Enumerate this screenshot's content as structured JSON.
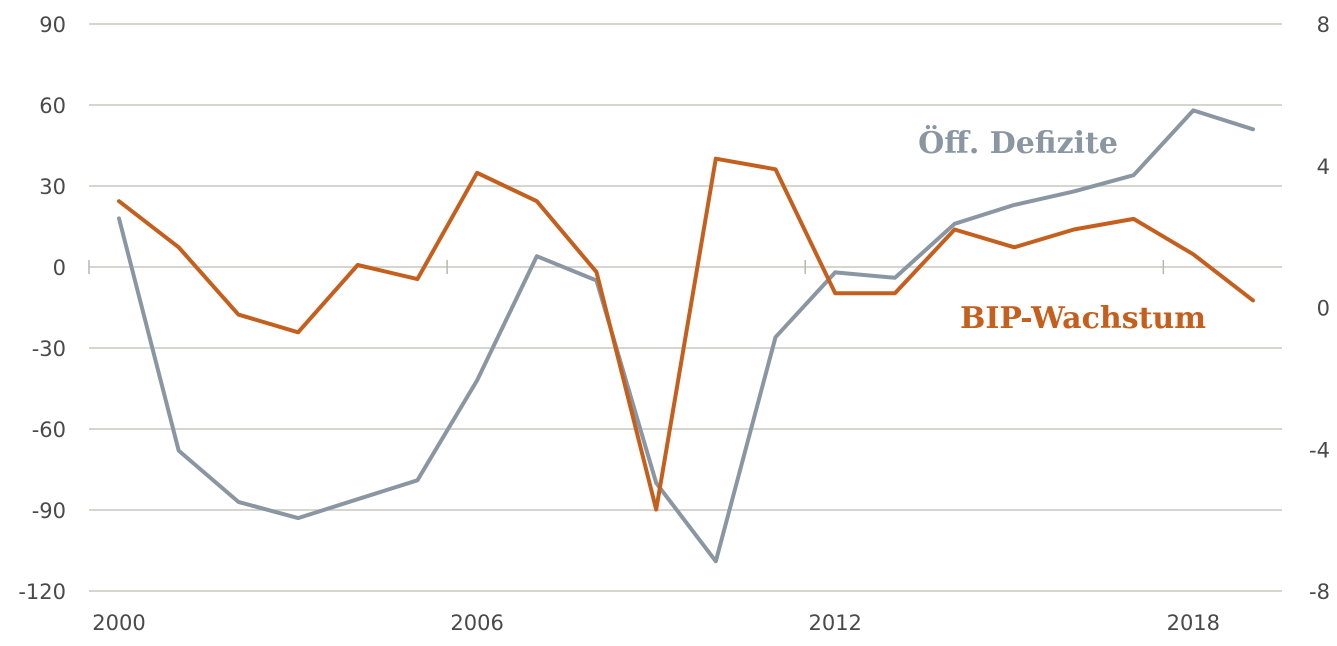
{
  "chart_data": {
    "type": "line",
    "title": "",
    "xlabel": "",
    "ylabel": "",
    "x": [
      2000,
      2001,
      2002,
      2003,
      2004,
      2005,
      2006,
      2007,
      2008,
      2009,
      2010,
      2011,
      2012,
      2013,
      2014,
      2015,
      2016,
      2017,
      2018,
      2019
    ],
    "xticks": [
      "2000",
      "2006",
      "2012",
      "2018"
    ],
    "xlim": [
      2000,
      2019
    ],
    "y_left": {
      "ticks": [
        "90",
        "60",
        "30",
        "0",
        "-30",
        "-60",
        "-90",
        "-120"
      ],
      "ylim": [
        -120,
        90
      ]
    },
    "y_right": {
      "ticks": [
        "8",
        "4",
        "0",
        "-4",
        "-8"
      ],
      "ylim": [
        -8,
        8
      ]
    },
    "grid": true,
    "series": [
      {
        "name": "Öff. Defizite",
        "axis": "left",
        "color": "#8a96a2",
        "values": [
          18,
          -68,
          -87,
          -93,
          -86,
          -79,
          -42,
          4,
          -5,
          -80,
          -109,
          -26,
          -2,
          -4,
          16,
          23,
          28,
          34,
          58,
          51
        ]
      },
      {
        "name": "BIP-Wachstum",
        "axis": "right",
        "color": "#c45f1e",
        "values": [
          3.0,
          1.7,
          -0.2,
          -0.7,
          1.2,
          0.8,
          3.8,
          3.0,
          1.0,
          -5.7,
          4.2,
          3.9,
          0.4,
          0.4,
          2.2,
          1.7,
          2.2,
          2.5,
          1.5,
          0.2
        ]
      }
    ]
  }
}
